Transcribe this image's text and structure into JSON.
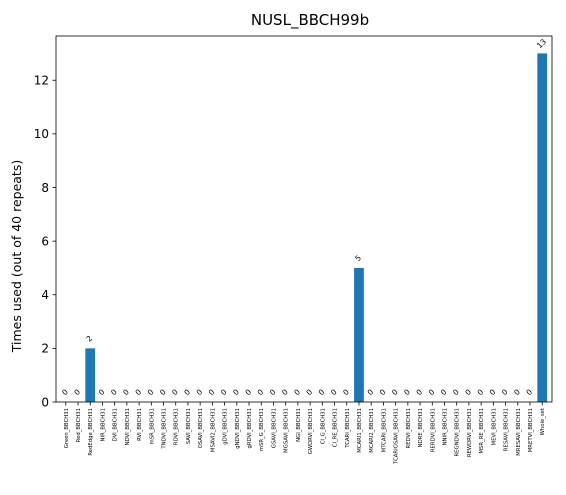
{
  "chart_data": {
    "type": "bar",
    "title": "NUSL_BBCH99b",
    "xlabel": "",
    "ylabel": "Times used (out of 40 repeats)",
    "ylim": [
      0,
      13.65
    ],
    "yticks": [
      0,
      2,
      4,
      6,
      8,
      10,
      12
    ],
    "grid": false,
    "legend": "none",
    "bar_color": "#1f77b4",
    "categories": [
      "Green_BBCH31",
      "Red_BBCH31",
      "RedEdge_BBCH31",
      "NIR_BBCH31",
      "DVI_BBCH31",
      "NDVI_BBCH31",
      "RVI_BBCH31",
      "mSR_BBCH31",
      "TNDVI_BBCH31",
      "RDVI_BBCH31",
      "SAVI_BBCH31",
      "OSAVI_BBCH31",
      "MSAVI2_BBCH31",
      "gDVI_BBCH31",
      "gNDVI_BBCH31",
      "gRDVI_BBCH31",
      "mSR_G_BBCH31",
      "GSAVI_BBCH31",
      "MGSAVI_BBCH31",
      "NGI_BBCH31",
      "GWDRVI_BBCH31",
      "CI_G_BBCH31",
      "CI_RE_BBCH31",
      "TCARI_BBCH31",
      "MCARI1_BBCH31",
      "MCARI2_BBCH31",
      "MTCARI_BBCH31",
      "TCARIOSAVI_BBCH31",
      "REDVI_BBCH31",
      "NDRE_BBCH31",
      "RERDVI_BBCH31",
      "NNIR_BBCH31",
      "REGNDVI_BBCH31",
      "REWDRVI_BBCH31",
      "MSR_RE_BBCH31",
      "MEVI_BBCH31",
      "RESAVI_BBCH31",
      "MRESAVI_BBCH31",
      "MRETVI_BBCH31",
      "Whole_set"
    ],
    "values": [
      0,
      0,
      2,
      0,
      0,
      0,
      0,
      0,
      0,
      0,
      0,
      0,
      0,
      0,
      0,
      0,
      0,
      0,
      0,
      0,
      0,
      0,
      0,
      0,
      5,
      0,
      0,
      0,
      0,
      0,
      0,
      0,
      0,
      0,
      0,
      0,
      0,
      0,
      0,
      13
    ],
    "bar_labels": [
      "0",
      "0",
      "2",
      "0",
      "0",
      "0",
      "0",
      "0",
      "0",
      "0",
      "0",
      "0",
      "0",
      "0",
      "0",
      "0",
      "0",
      "0",
      "0",
      "0",
      "0",
      "0",
      "0",
      "0",
      "5",
      "0",
      "0",
      "0",
      "0",
      "0",
      "0",
      "0",
      "0",
      "0",
      "0",
      "0",
      "0",
      "0",
      "0",
      "13"
    ]
  }
}
